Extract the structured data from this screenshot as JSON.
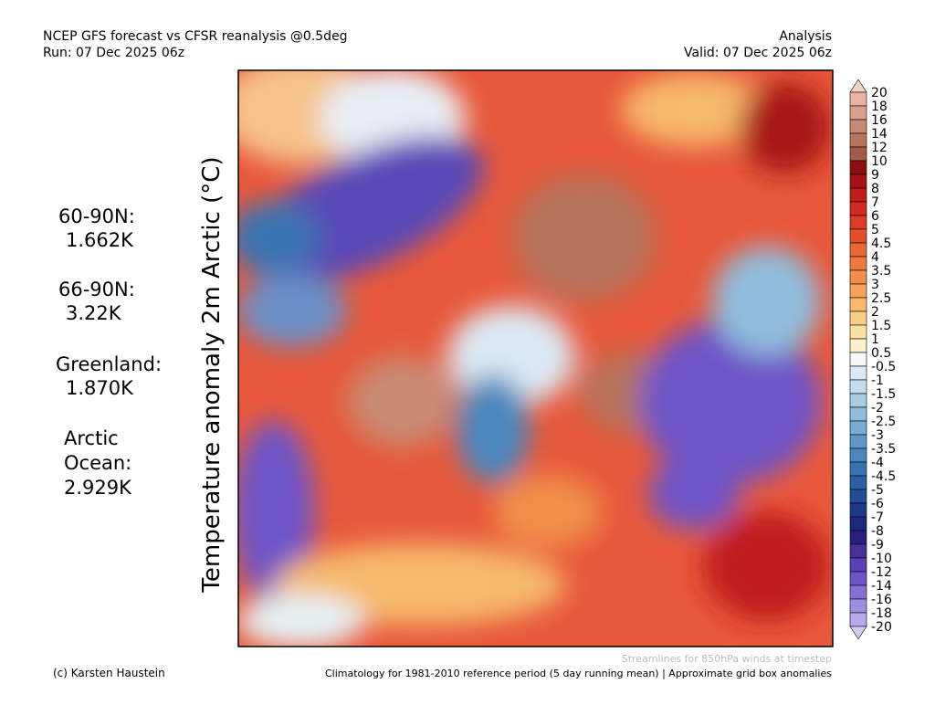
{
  "header": {
    "left": [
      "NCEP GFS forecast vs CFSR reanalysis @0.5deg",
      "Run: 07 Dec 2025 06z"
    ],
    "right": [
      "Analysis",
      "Valid: 07 Dec 2025 06z"
    ]
  },
  "vertical_title": "Temperature anomaly 2m Arctic (°C)",
  "stats": [
    {
      "region": "60-90N:",
      "value": "1.662K"
    },
    {
      "region": "66-90N:",
      "value": "3.22K"
    },
    {
      "region": "Greenland:",
      "value": "1.870K"
    },
    {
      "region": [
        "Arctic",
        "Ocean:"
      ],
      "value": "2.929K"
    }
  ],
  "colorbar": {
    "levels": [
      20,
      18,
      16,
      14,
      12,
      10,
      9,
      8,
      7,
      6,
      5,
      4.5,
      4,
      3.5,
      3,
      2.5,
      2,
      1.5,
      1,
      0.5,
      -0.5,
      -1,
      -1.5,
      -2,
      -2.5,
      -3,
      -3.5,
      -4,
      -4.5,
      -5,
      -6,
      -7,
      -8,
      -9,
      -10,
      -12,
      -14,
      -16,
      -18,
      -20
    ],
    "colors": [
      "#f2d0c4",
      "#e6b3a2",
      "#d9a08b",
      "#c98a72",
      "#b8735b",
      "#a45c47",
      "#8c1010",
      "#a81414",
      "#c01c1c",
      "#d02c22",
      "#dc3c28",
      "#e34e2c",
      "#ea6634",
      "#ee7b3c",
      "#f18f48",
      "#f4a358",
      "#f7b96c",
      "#f9cd84",
      "#fbe0a2",
      "#fdf0cc",
      "#f7f7f7",
      "#dbe9f5",
      "#c3dcee",
      "#aacde6",
      "#90bddd",
      "#78acd3",
      "#5f98c8",
      "#4a86be",
      "#3a73b2",
      "#2c60a4",
      "#224c96",
      "#1c3a88",
      "#1c2a7c",
      "#2c1e80",
      "#48309a",
      "#5a40b4",
      "#6e54c8",
      "#8670d6",
      "#9e8ee2",
      "#b8aaec",
      "#d4c8f6"
    ]
  },
  "footer": {
    "left": "(c) Karsten Haustein",
    "note": "Streamlines for 850hPa winds at timestep",
    "right": "Climatology for 1981-2010 reference period (5 day running mean) | Approximate grid box anomalies"
  }
}
